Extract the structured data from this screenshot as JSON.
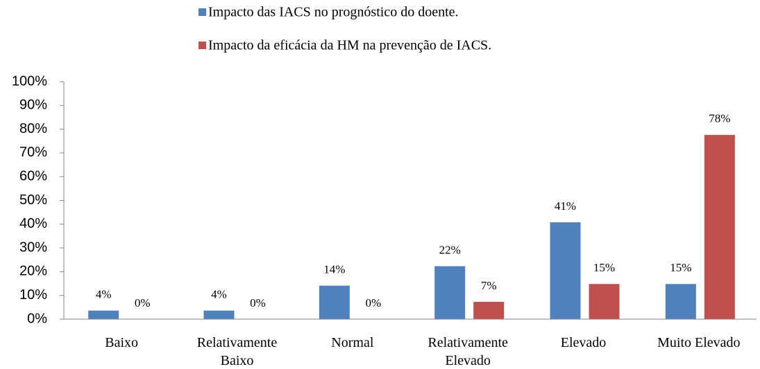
{
  "chart_data": {
    "type": "bar",
    "categories": [
      "Baixo",
      "Relativamente Baixo",
      "Normal",
      "Relativamente Elevado",
      "Elevado",
      "Muito Elevado"
    ],
    "series": [
      {
        "name": "Impacto das IACS no prognóstico do doente.",
        "color": "#4f81bd",
        "values": [
          3.6,
          3.6,
          14.1,
          22.3,
          40.8,
          14.8
        ],
        "value_labels": [
          "4%",
          "4%",
          "14%",
          "22%",
          "41%",
          "15%"
        ]
      },
      {
        "name": "Impacto da eficácia da HM na prevenção de IACS.",
        "color": "#c0504d",
        "values": [
          0,
          0,
          0,
          7.3,
          14.8,
          77.6
        ],
        "value_labels": [
          "0%",
          "0%",
          "0%",
          "7%",
          "15%",
          "78%"
        ]
      }
    ],
    "ylim": [
      0,
      100
    ],
    "yticks": [
      {
        "value": 0,
        "label": "0%"
      },
      {
        "value": 10,
        "label": "10%"
      },
      {
        "value": 20,
        "label": "20%"
      },
      {
        "value": 30,
        "label": "30%"
      },
      {
        "value": 40,
        "label": "40%"
      },
      {
        "value": 50,
        "label": "50%"
      },
      {
        "value": 60,
        "label": "60%"
      },
      {
        "value": 70,
        "label": "70%"
      },
      {
        "value": 80,
        "label": "80%"
      },
      {
        "value": 90,
        "label": "90%"
      },
      {
        "value": 100,
        "label": "100%"
      }
    ],
    "legend": "top"
  }
}
